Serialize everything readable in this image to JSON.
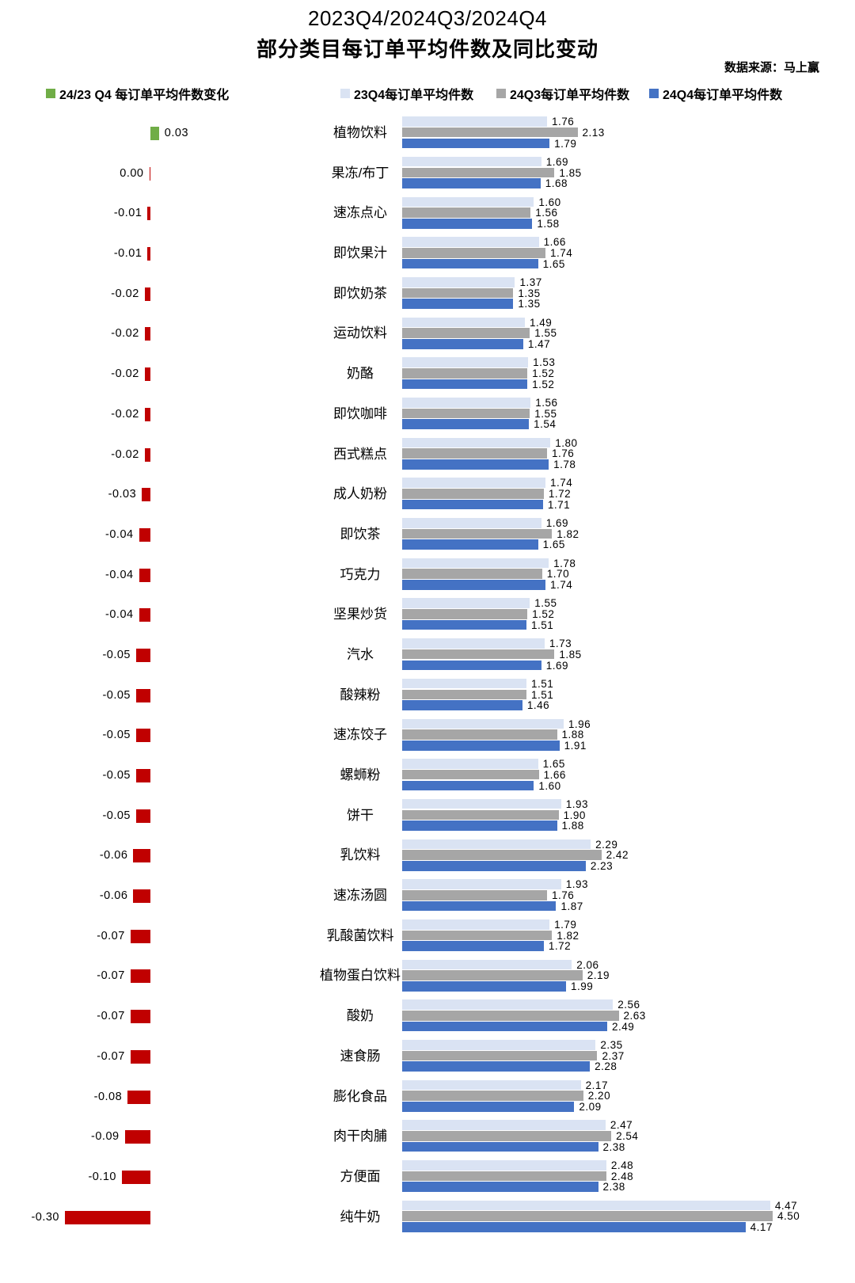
{
  "title": {
    "line1": "2023Q4/2024Q3/2024Q4",
    "line2": "部分类目每订单平均件数及同比变动",
    "source": "数据来源：马上赢"
  },
  "legend": [
    {
      "label": "24/23 Q4 每订单平均件数变化",
      "color": "#70AD47"
    },
    {
      "label": "23Q4每订单平均件数",
      "color": "#DAE3F3"
    },
    {
      "label": "24Q3每订单平均件数",
      "color": "#A6A6A6"
    },
    {
      "label": "24Q4每订单平均件数",
      "color": "#4472C4"
    }
  ],
  "chart_data": {
    "type": "bar",
    "orientation": "horizontal",
    "title": "2023Q4/2024Q3/2024Q4 部分类目每订单平均件数及同比变动",
    "source": "数据来源：马上赢",
    "legend_position": "top",
    "grid": false,
    "categories": [
      "植物饮料",
      "果冻/布丁",
      "速冻点心",
      "即饮果汁",
      "即饮奶茶",
      "运动饮料",
      "奶酪",
      "即饮咖啡",
      "西式糕点",
      "成人奶粉",
      "即饮茶",
      "巧克力",
      "坚果炒货",
      "汽水",
      "酸辣粉",
      "速冻饺子",
      "螺蛳粉",
      "饼干",
      "乳饮料",
      "速冻汤圆",
      "乳酸菌饮料",
      "植物蛋白饮料",
      "酸奶",
      "速食肠",
      "膨化食品",
      "肉干肉脯",
      "方便面",
      "纯牛奶"
    ],
    "series": [
      {
        "name": "24/23 Q4 每订单平均件数变化",
        "values": [
          0.03,
          0.0,
          -0.01,
          -0.01,
          -0.02,
          -0.02,
          -0.02,
          -0.02,
          -0.02,
          -0.03,
          -0.04,
          -0.04,
          -0.04,
          -0.05,
          -0.05,
          -0.05,
          -0.05,
          -0.05,
          -0.06,
          -0.06,
          -0.07,
          -0.07,
          -0.07,
          -0.07,
          -0.08,
          -0.09,
          -0.1,
          -0.3
        ]
      },
      {
        "name": "23Q4每订单平均件数",
        "values": [
          1.76,
          1.69,
          1.6,
          1.66,
          1.37,
          1.49,
          1.53,
          1.56,
          1.8,
          1.74,
          1.69,
          1.78,
          1.55,
          1.73,
          1.51,
          1.96,
          1.65,
          1.93,
          2.29,
          1.93,
          1.79,
          2.06,
          2.56,
          2.35,
          2.17,
          2.47,
          2.48,
          4.47
        ]
      },
      {
        "name": "24Q3每订单平均件数",
        "values": [
          2.13,
          1.85,
          1.56,
          1.74,
          1.35,
          1.55,
          1.52,
          1.55,
          1.76,
          1.72,
          1.82,
          1.7,
          1.52,
          1.85,
          1.51,
          1.88,
          1.66,
          1.9,
          2.42,
          1.76,
          1.82,
          2.19,
          2.63,
          2.37,
          2.2,
          2.54,
          2.48,
          4.5
        ]
      },
      {
        "name": "24Q4每订单平均件数",
        "values": [
          1.79,
          1.68,
          1.58,
          1.65,
          1.35,
          1.47,
          1.52,
          1.54,
          1.78,
          1.71,
          1.65,
          1.74,
          1.51,
          1.69,
          1.46,
          1.91,
          1.6,
          1.88,
          2.23,
          1.87,
          1.72,
          1.99,
          2.49,
          2.28,
          2.09,
          2.38,
          2.38,
          4.17
        ]
      }
    ],
    "colors": {
      "change_positive": "#70AD47",
      "change_negative": "#C00000",
      "bar_2023q4": "#DAE3F3",
      "bar_2024q3": "#A6A6A6",
      "bar_2024q4": "#4472C4"
    }
  }
}
